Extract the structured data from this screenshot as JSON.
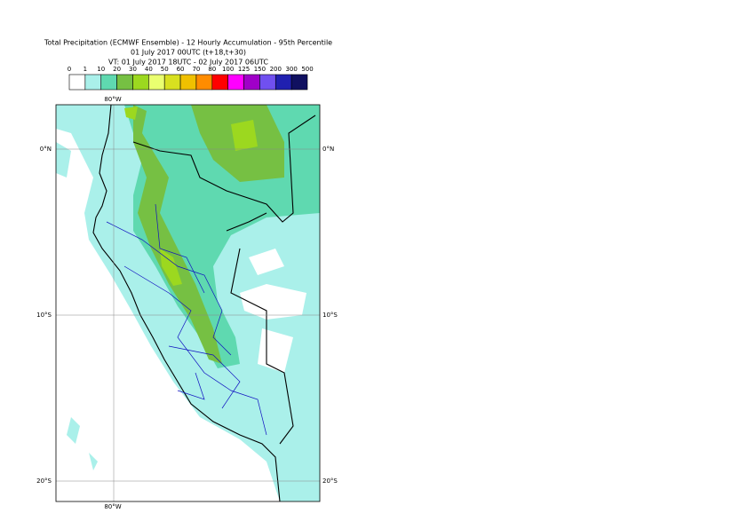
{
  "title": "Total Precipitation (ECMWF Ensemble) - 12 Hourly Accumulation - 95th Percentile",
  "subtitle": "01 July 2017 00UTC (t+18,t+30)",
  "valid_time": "VT: 01 July 2017 18UTC - 02 July 2017 06UTC",
  "legend": {
    "thresholds": [
      0,
      1,
      10,
      20,
      30,
      40,
      50,
      60,
      70,
      80,
      100,
      125,
      150,
      200,
      300,
      500
    ],
    "colors": [
      "#ffffff",
      "#aaf0ea",
      "#5fd9b0",
      "#76c043",
      "#9cd81f",
      "#eaff70",
      "#d8e020",
      "#f0c000",
      "#ff8c00",
      "#ff0000",
      "#ff00ff",
      "#a000c8",
      "#7050f0",
      "#2020b0",
      "#101060"
    ]
  },
  "map": {
    "lon_label": "80°W",
    "lat_labels": [
      "0°N",
      "10°S",
      "20°S"
    ]
  }
}
